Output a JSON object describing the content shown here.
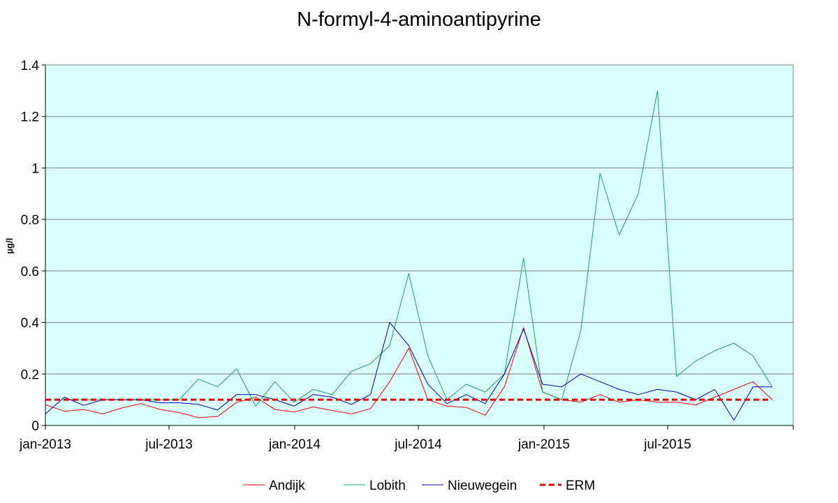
{
  "chart_data": {
    "type": "line",
    "title": "N-formyl-4-aminoantipyrine",
    "xlabel": "",
    "ylabel": "µg/l",
    "ylim": [
      0,
      1.4
    ],
    "yticks": [
      "0",
      "0.2",
      "0.4",
      "0.6",
      "0.8",
      "1",
      "1.2",
      "1.4"
    ],
    "xticks": [
      {
        "date": "2013-01-01",
        "label": "jan-2013"
      },
      {
        "date": "2013-07-01",
        "label": "jul-2013"
      },
      {
        "date": "2014-01-01",
        "label": "jan-2014"
      },
      {
        "date": "2014-07-01",
        "label": "jul-2014"
      },
      {
        "date": "2015-01-01",
        "label": "jan-2015"
      },
      {
        "date": "2015-07-01",
        "label": "jul-2015"
      }
    ],
    "xlim": [
      "2013-01-01",
      "2016-01-01"
    ],
    "grid": true,
    "plot_background": "#d9ffff",
    "legend_position": "bottom",
    "series": [
      {
        "name": "Andijk",
        "color": "#ff0000",
        "style": "solid",
        "points": [
          [
            "2013-01-01",
            0.08
          ],
          [
            "2013-01-29",
            0.055
          ],
          [
            "2013-02-26",
            0.062
          ],
          [
            "2013-03-26",
            0.045
          ],
          [
            "2013-04-23",
            0.068
          ],
          [
            "2013-05-21",
            0.085
          ],
          [
            "2013-06-18",
            0.062
          ],
          [
            "2013-07-16",
            0.05
          ],
          [
            "2013-08-13",
            0.03
          ],
          [
            "2013-09-10",
            0.035
          ],
          [
            "2013-10-08",
            0.09
          ],
          [
            "2013-11-05",
            0.11
          ],
          [
            "2013-12-03",
            0.062
          ],
          [
            "2013-12-31",
            0.052
          ],
          [
            "2014-01-28",
            0.072
          ],
          [
            "2014-02-25",
            0.058
          ],
          [
            "2014-03-25",
            0.045
          ],
          [
            "2014-04-22",
            0.065
          ],
          [
            "2014-05-20",
            0.17
          ],
          [
            "2014-06-17",
            0.3
          ],
          [
            "2014-07-15",
            0.1
          ],
          [
            "2014-08-12",
            0.075
          ],
          [
            "2014-09-09",
            0.07
          ],
          [
            "2014-10-07",
            0.04
          ],
          [
            "2014-11-04",
            0.15
          ],
          [
            "2014-12-02",
            0.38
          ],
          [
            "2014-12-30",
            0.13
          ],
          [
            "2015-01-27",
            0.1
          ],
          [
            "2015-02-24",
            0.09
          ],
          [
            "2015-03-24",
            0.12
          ],
          [
            "2015-04-21",
            0.09
          ],
          [
            "2015-05-19",
            0.1
          ],
          [
            "2015-06-16",
            0.09
          ],
          [
            "2015-07-14",
            0.09
          ],
          [
            "2015-08-11",
            0.08
          ],
          [
            "2015-09-08",
            0.11
          ],
          [
            "2015-10-06",
            0.14
          ],
          [
            "2015-11-03",
            0.17
          ],
          [
            "2015-12-01",
            0.1
          ]
        ]
      },
      {
        "name": "Lobith",
        "color": "#22a05a",
        "style": "solid",
        "points": [
          [
            "2013-01-29",
            0.1
          ],
          [
            "2013-02-26",
            0.1
          ],
          [
            "2013-03-26",
            0.1
          ],
          [
            "2013-04-23",
            0.1
          ],
          [
            "2013-05-21",
            0.1
          ],
          [
            "2013-06-18",
            0.1
          ],
          [
            "2013-07-16",
            0.1
          ],
          [
            "2013-08-13",
            0.18
          ],
          [
            "2013-09-10",
            0.15
          ],
          [
            "2013-10-08",
            0.22
          ],
          [
            "2013-11-05",
            0.075
          ],
          [
            "2013-12-03",
            0.17
          ],
          [
            "2013-12-31",
            0.09
          ],
          [
            "2014-01-28",
            0.14
          ],
          [
            "2014-02-25",
            0.12
          ],
          [
            "2014-03-25",
            0.21
          ],
          [
            "2014-04-22",
            0.24
          ],
          [
            "2014-05-20",
            0.31
          ],
          [
            "2014-06-17",
            0.59
          ],
          [
            "2014-07-15",
            0.27
          ],
          [
            "2014-08-12",
            0.1
          ],
          [
            "2014-09-09",
            0.16
          ],
          [
            "2014-10-07",
            0.13
          ],
          [
            "2014-11-04",
            0.2
          ],
          [
            "2014-12-02",
            0.65
          ],
          [
            "2014-12-30",
            0.13
          ],
          [
            "2015-01-27",
            0.1
          ],
          [
            "2015-02-24",
            0.37
          ],
          [
            "2015-03-24",
            0.98
          ],
          [
            "2015-04-21",
            0.74
          ],
          [
            "2015-05-19",
            0.9
          ],
          [
            "2015-06-16",
            1.3
          ],
          [
            "2015-07-14",
            0.19
          ],
          [
            "2015-08-11",
            0.25
          ],
          [
            "2015-09-08",
            0.29
          ],
          [
            "2015-10-06",
            0.32
          ],
          [
            "2015-11-03",
            0.27
          ],
          [
            "2015-12-01",
            0.15
          ]
        ]
      },
      {
        "name": "Nieuwegein",
        "color": "#0000b4",
        "style": "solid",
        "points": [
          [
            "2013-01-01",
            0.045
          ],
          [
            "2013-01-29",
            0.11
          ],
          [
            "2013-02-26",
            0.078
          ],
          [
            "2013-03-26",
            0.1
          ],
          [
            "2013-04-23",
            0.1
          ],
          [
            "2013-05-21",
            0.1
          ],
          [
            "2013-06-18",
            0.088
          ],
          [
            "2013-07-16",
            0.088
          ],
          [
            "2013-08-13",
            0.082
          ],
          [
            "2013-09-10",
            0.06
          ],
          [
            "2013-10-08",
            0.12
          ],
          [
            "2013-11-05",
            0.12
          ],
          [
            "2013-12-03",
            0.1
          ],
          [
            "2013-12-31",
            0.075
          ],
          [
            "2014-01-28",
            0.12
          ],
          [
            "2014-02-25",
            0.11
          ],
          [
            "2014-03-25",
            0.082
          ],
          [
            "2014-04-22",
            0.12
          ],
          [
            "2014-05-20",
            0.4
          ],
          [
            "2014-06-17",
            0.31
          ],
          [
            "2014-07-15",
            0.16
          ],
          [
            "2014-08-12",
            0.085
          ],
          [
            "2014-09-09",
            0.12
          ],
          [
            "2014-10-07",
            0.085
          ],
          [
            "2014-11-04",
            0.2
          ],
          [
            "2014-12-02",
            0.375
          ],
          [
            "2014-12-30",
            0.16
          ],
          [
            "2015-01-27",
            0.15
          ],
          [
            "2015-02-24",
            0.2
          ],
          [
            "2015-03-24",
            0.17
          ],
          [
            "2015-04-21",
            0.14
          ],
          [
            "2015-05-19",
            0.12
          ],
          [
            "2015-06-16",
            0.14
          ],
          [
            "2015-07-14",
            0.13
          ],
          [
            "2015-08-11",
            0.1
          ],
          [
            "2015-09-08",
            0.14
          ],
          [
            "2015-10-06",
            0.02
          ],
          [
            "2015-11-03",
            0.15
          ],
          [
            "2015-12-01",
            0.15
          ]
        ]
      },
      {
        "name": "ERM",
        "color": "#e00000",
        "style": "dashed",
        "points": [
          [
            "2013-01-01",
            0.1
          ],
          [
            "2015-12-01",
            0.1
          ]
        ]
      }
    ]
  }
}
